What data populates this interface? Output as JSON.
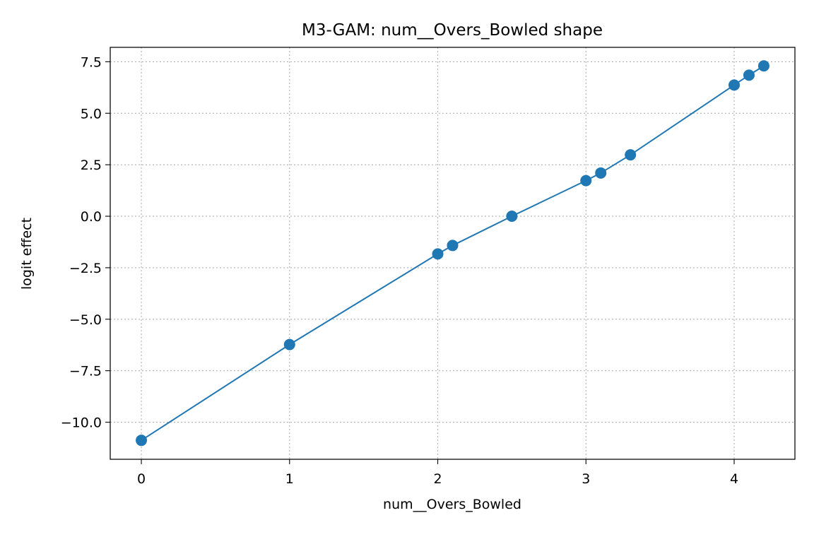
{
  "chart_data": {
    "type": "line",
    "title": "M3-GAM: num__Overs_Bowled shape",
    "xlabel": "num__Overs_Bowled",
    "ylabel": "logit effect",
    "xlim": [
      -0.21,
      4.41
    ],
    "ylim": [
      -11.8,
      8.2
    ],
    "xticks": [
      0,
      1,
      2,
      3,
      4
    ],
    "xtick_labels": [
      "0",
      "1",
      "2",
      "3",
      "4"
    ],
    "yticks": [
      -10.0,
      -7.5,
      -5.0,
      -2.5,
      0.0,
      2.5,
      5.0,
      7.5
    ],
    "ytick_labels": [
      "−10.0",
      "−7.5",
      "−5.0",
      "−2.5",
      "0.0",
      "2.5",
      "5.0",
      "7.5"
    ],
    "grid": true,
    "legend": "none",
    "series": [
      {
        "color": "#1f77b4",
        "marker": "circle",
        "x": [
          0.0,
          1.0,
          2.0,
          2.1,
          2.5,
          3.0,
          3.1,
          3.3,
          4.0,
          4.1,
          4.2
        ],
        "y": [
          -10.88,
          -6.23,
          -1.83,
          -1.42,
          0.0,
          1.73,
          2.1,
          2.98,
          6.37,
          6.85,
          7.3
        ]
      }
    ]
  }
}
